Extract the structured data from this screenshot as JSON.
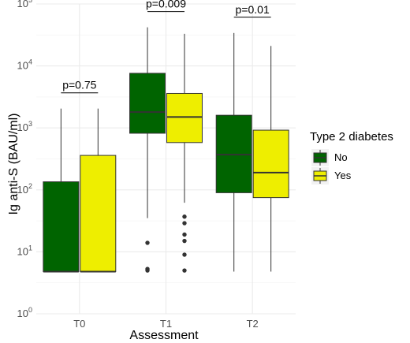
{
  "chart_data": {
    "type": "box",
    "xlabel": "Assessment",
    "ylabel": "Ig anti-S (BAU/ml)",
    "y_scale": "log10",
    "ylim": [
      1,
      100000
    ],
    "y_ticks": [
      {
        "value": 1,
        "label_base": "10",
        "label_exp": "0"
      },
      {
        "value": 10,
        "label_base": "10",
        "label_exp": "1"
      },
      {
        "value": 100,
        "label_base": "10",
        "label_exp": "2"
      },
      {
        "value": 1000,
        "label_base": "10",
        "label_exp": "3"
      },
      {
        "value": 10000,
        "label_base": "10",
        "label_exp": "4"
      },
      {
        "value": 100000,
        "label_base": "10",
        "label_exp": "5"
      }
    ],
    "categories": [
      "T0",
      "T1",
      "T2"
    ],
    "grid": true,
    "legend": {
      "title": "Type 2 diabetes",
      "position": "right",
      "entries": [
        {
          "label": "No",
          "color": "#006400"
        },
        {
          "label": "Yes",
          "color": "#eeee00"
        }
      ]
    },
    "series": [
      {
        "name": "No",
        "color": "#006400",
        "boxes": [
          {
            "category": "T0",
            "min": 4.8,
            "q1": 4.8,
            "median": 4.8,
            "q3": 135,
            "max": 2050,
            "outliers": []
          },
          {
            "category": "T1",
            "min": 35,
            "q1": 820,
            "median": 1800,
            "q3": 7600,
            "max": 42000,
            "outliers": [
              14,
              5.3,
              5
            ]
          },
          {
            "category": "T2",
            "min": 4.8,
            "q1": 90,
            "median": 370,
            "q3": 1600,
            "max": 34000,
            "outliers": []
          }
        ]
      },
      {
        "name": "Yes",
        "color": "#eeee00",
        "boxes": [
          {
            "category": "T0",
            "min": 4.8,
            "q1": 4.8,
            "median": 4.8,
            "q3": 360,
            "max": 2050,
            "outliers": []
          },
          {
            "category": "T1",
            "min": 62,
            "q1": 580,
            "median": 1500,
            "q3": 3600,
            "max": 33000,
            "outliers": [
              37,
              29,
              19,
              15,
              9,
              5
            ]
          },
          {
            "category": "T2",
            "min": 4.8,
            "q1": 75,
            "median": 190,
            "q3": 920,
            "max": 21000,
            "outliers": []
          }
        ]
      }
    ],
    "annotations": [
      {
        "category": "T0",
        "text": "p=0.75"
      },
      {
        "category": "T1",
        "text": "p=0.009"
      },
      {
        "category": "T2",
        "text": "p=0.01"
      }
    ]
  }
}
